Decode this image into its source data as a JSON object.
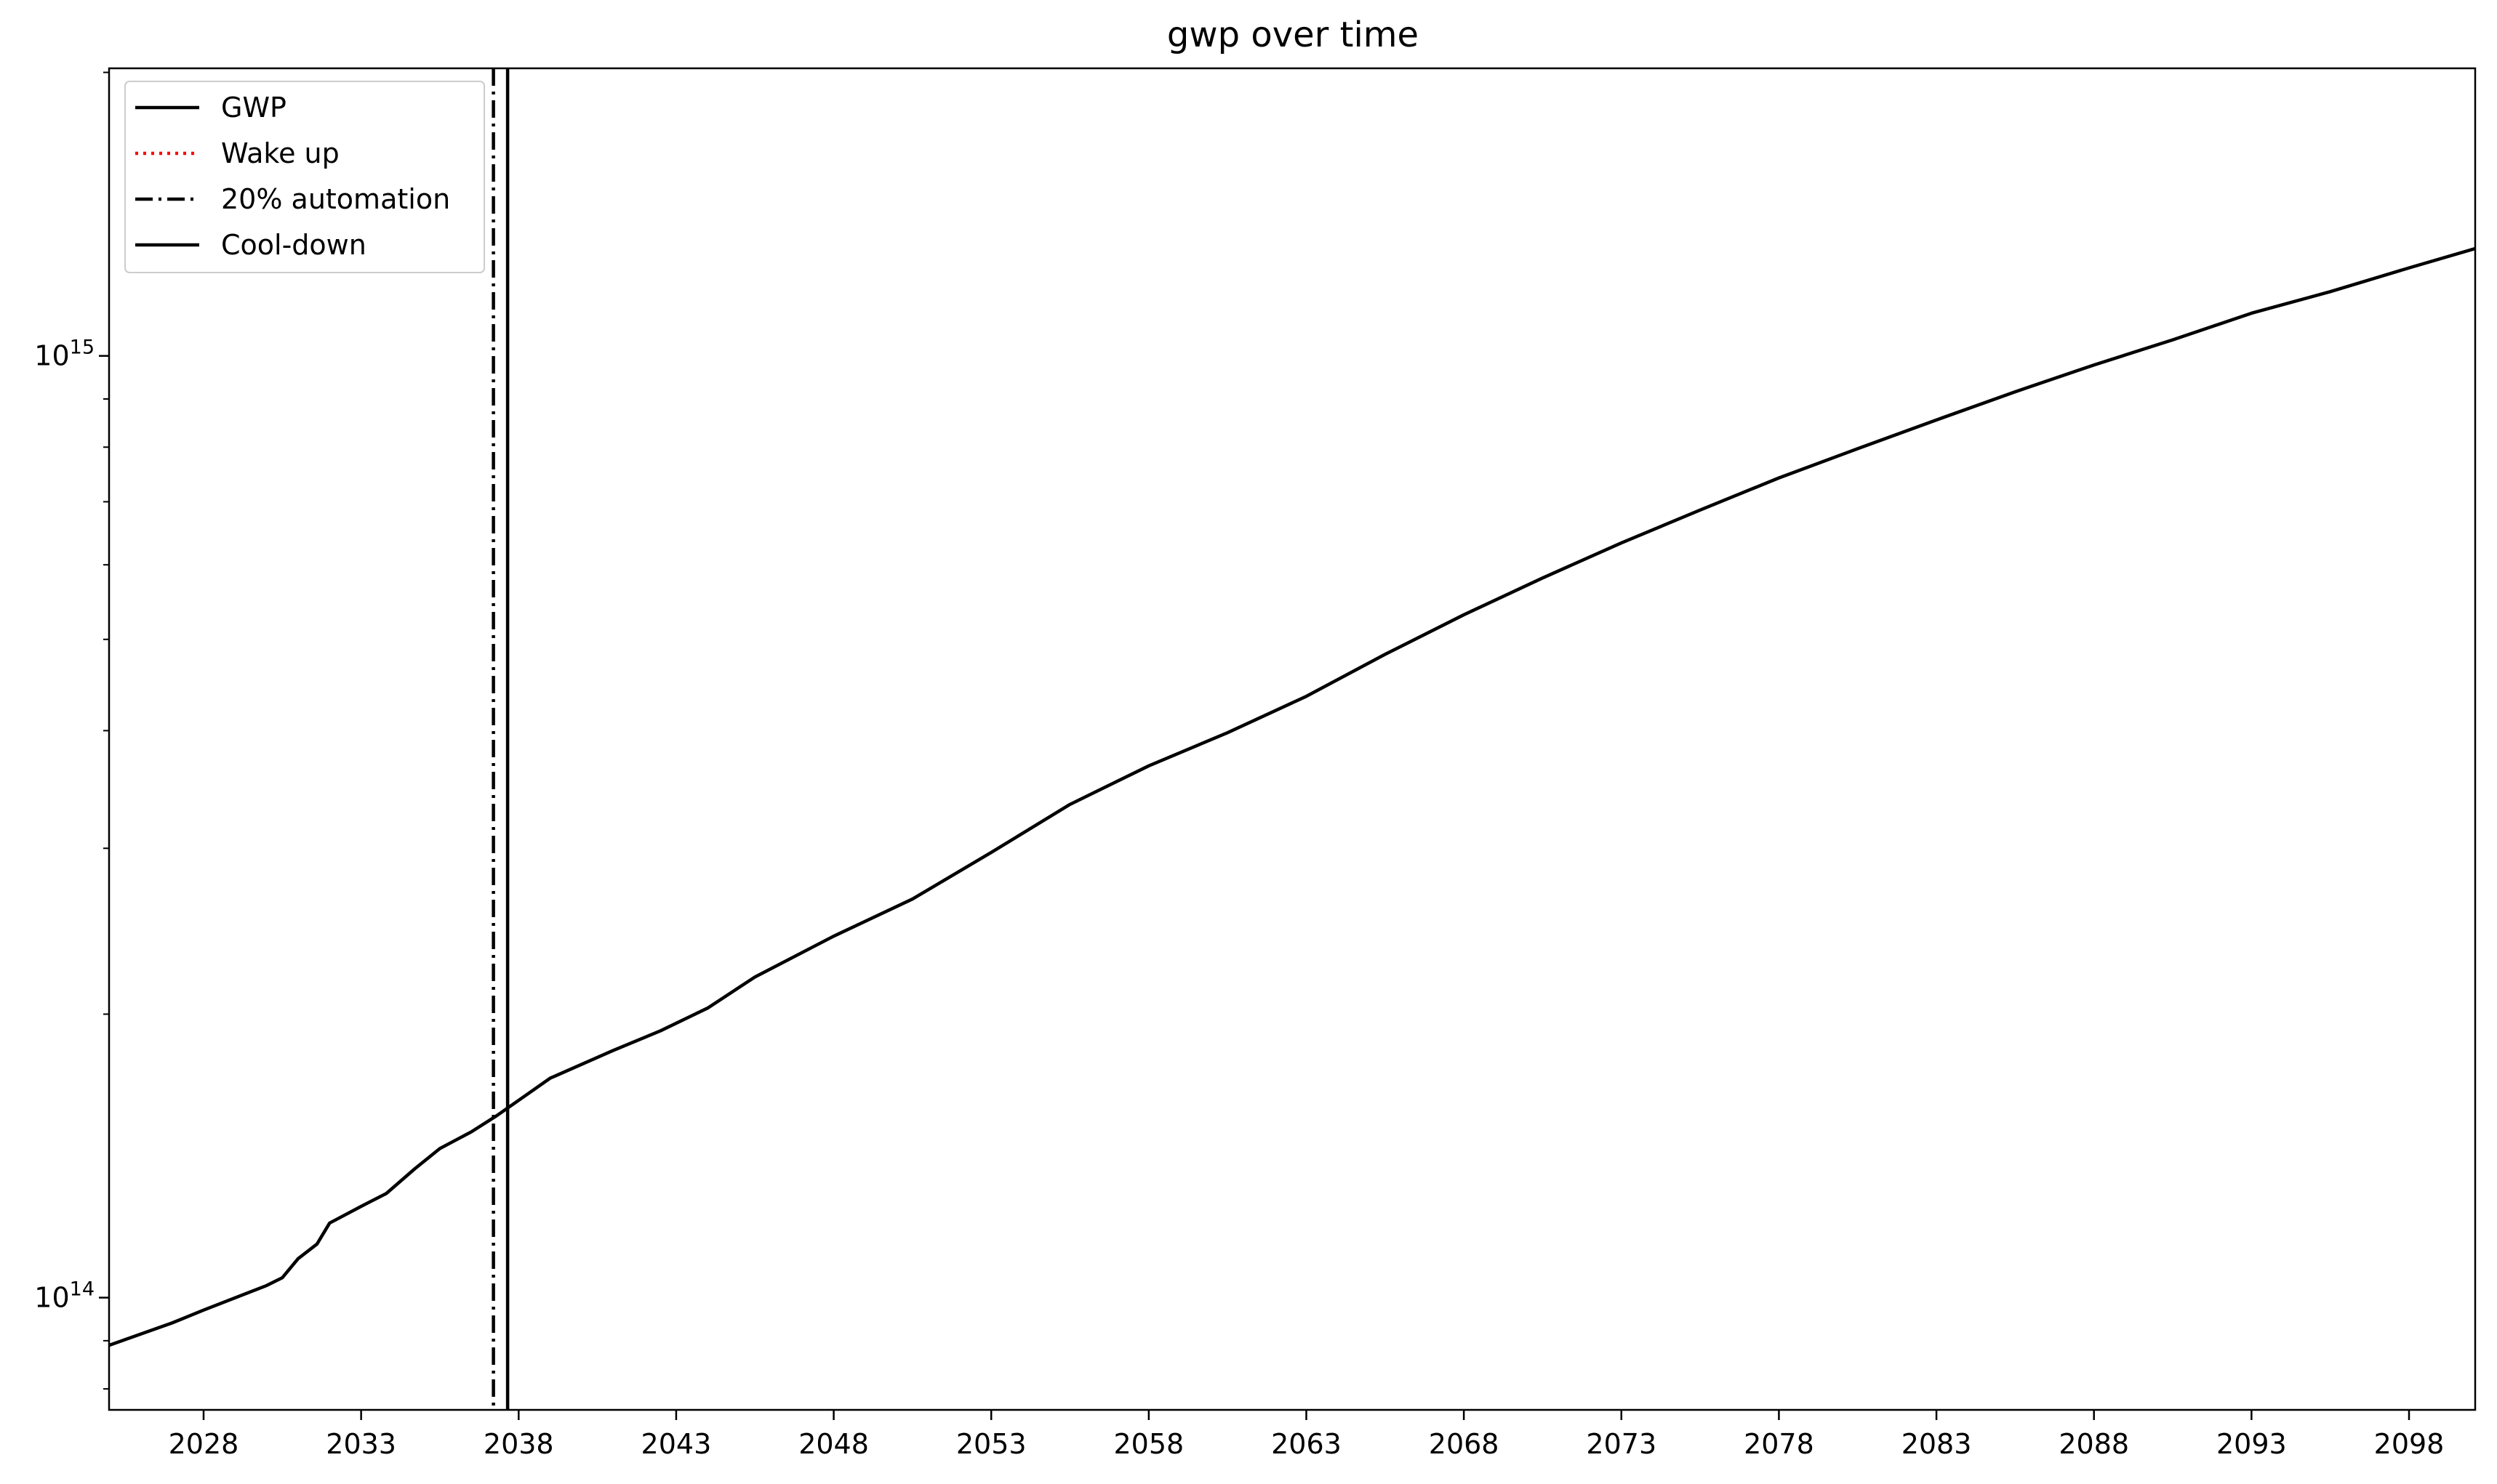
{
  "chart_data": {
    "type": "line",
    "title": "gwp over time",
    "xlabel": "",
    "ylabel": "",
    "yscale": "log",
    "xlim": [
      2025.0,
      2100.1
    ],
    "ylim": [
      76000000000000.0,
      2020000000000000.0
    ],
    "xticks": [
      2028,
      2033,
      2038,
      2043,
      2048,
      2053,
      2058,
      2063,
      2068,
      2073,
      2078,
      2083,
      2088,
      2093,
      2098
    ],
    "yticks": [
      {
        "value": 100000000000000.0,
        "base": "10",
        "exp": "14"
      },
      {
        "value": 1000000000000000.0,
        "base": "10",
        "exp": "15"
      }
    ],
    "grid": false,
    "legend_position": "top-left",
    "series": [
      {
        "name": "GWP",
        "color": "#000000",
        "style": "solid",
        "x": [
          2025.0,
          2027.0,
          2028.0,
          2030.0,
          2030.5,
          2031.0,
          2031.6,
          2032.0,
          2033.0,
          2033.8,
          2034.7,
          2035.5,
          2036.5,
          2037.3,
          2038.0,
          2039.0,
          2041.0,
          2042.5,
          2044.0,
          2045.5,
          2048.0,
          2050.5,
          2053.0,
          2055.5,
          2058.0,
          2060.5,
          2063.0,
          2065.5,
          2068.0,
          2070.5,
          2073.0,
          2075.5,
          2078.0,
          2080.5,
          2083.0,
          2085.5,
          2088.0,
          2090.5,
          2093.0,
          2095.5,
          2098.0,
          2100.1
        ],
        "y": [
          89000000000000.0,
          94000000000000.0,
          97000000000000.0,
          103000000000000.0,
          105000000000000.0,
          110000000000000.0,
          114000000000000.0,
          120000000000000.0,
          125000000000000.0,
          129000000000000.0,
          137000000000000.0,
          144000000000000.0,
          150000000000000.0,
          156000000000000.0,
          162000000000000.0,
          171000000000000.0,
          183000000000000.0,
          192000000000000.0,
          203000000000000.0,
          219000000000000.0,
          242000000000000.0,
          265000000000000.0,
          297000000000000.0,
          334000000000000.0,
          367000000000000.0,
          398000000000000.0,
          435000000000000.0,
          482000000000000.0,
          531000000000000.0,
          581000000000000.0,
          633000000000000.0,
          686000000000000.0,
          742000000000000.0,
          797000000000000.0,
          855000000000000.0,
          916000000000000.0,
          978000000000000.0,
          1040000000000000.0,
          1110000000000000.0,
          1170000000000000.0,
          1240000000000000.0,
          1300000000000000.0
        ]
      }
    ],
    "vlines": [
      {
        "name": "20% automation",
        "x": 2037.2,
        "color": "#000000",
        "style": "dashdot"
      },
      {
        "name": "Cool-down",
        "x": 2037.65,
        "color": "#000000",
        "style": "solid"
      }
    ],
    "legend": [
      {
        "label": "GWP",
        "color": "#000000",
        "style": "solid"
      },
      {
        "label": "Wake up",
        "color": "#ff0000",
        "style": "dotted"
      },
      {
        "label": "20% automation",
        "color": "#000000",
        "style": "dashdot"
      },
      {
        "label": "Cool-down",
        "color": "#000000",
        "style": "solid"
      }
    ]
  }
}
